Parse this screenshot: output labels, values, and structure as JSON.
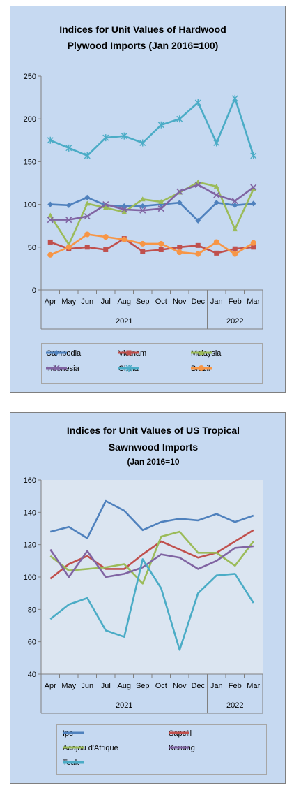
{
  "chart_data": [
    {
      "type": "line",
      "title": "Indices for Unit Values of Hardwood",
      "subtitle": "Plywood Imports (Jan 2016=100)",
      "categories": [
        "Apr",
        "May",
        "Jun",
        "Jul",
        "Aug",
        "Sep",
        "Oct",
        "Nov",
        "Dec",
        "Jan",
        "Feb",
        "Mar"
      ],
      "year_groups": [
        {
          "label": "2021",
          "count": 9
        },
        {
          "label": "2022",
          "count": 3
        }
      ],
      "ylim": [
        0,
        250
      ],
      "yticks": [
        0,
        50,
        100,
        150,
        200,
        250
      ],
      "grid": false,
      "legend_position": "bottom",
      "series": [
        {
          "name": "Cambodia",
          "color": "#4f81bd",
          "marker": "diamond",
          "values": [
            100,
            99,
            108,
            99,
            98,
            98,
            100,
            102,
            81,
            102,
            99,
            101
          ]
        },
        {
          "name": "Vietnam",
          "color": "#c0504d",
          "marker": "square",
          "values": [
            56,
            48,
            50,
            47,
            60,
            45,
            47,
            50,
            52,
            43,
            48,
            50
          ]
        },
        {
          "name": "Malaysia",
          "color": "#9bbb59",
          "marker": "triangle",
          "values": [
            87,
            53,
            101,
            96,
            91,
            106,
            103,
            114,
            126,
            121,
            71,
            118
          ]
        },
        {
          "name": "Indonesia",
          "color": "#8064a2",
          "marker": "x",
          "values": [
            82,
            82,
            86,
            100,
            94,
            93,
            95,
            115,
            123,
            111,
            104,
            120
          ]
        },
        {
          "name": "China",
          "color": "#4bacc6",
          "marker": "star",
          "values": [
            175,
            166,
            157,
            178,
            180,
            172,
            193,
            200,
            219,
            172,
            224,
            157
          ]
        },
        {
          "name": "Brazil",
          "color": "#f79646",
          "marker": "circle",
          "values": [
            41,
            50,
            65,
            62,
            59,
            54,
            54,
            44,
            42,
            56,
            42,
            55
          ]
        }
      ]
    },
    {
      "type": "line",
      "title": "Indices for Unit Values of US Tropical",
      "subtitle": "Sawnwood Imports",
      "subtitle2": "(Jan 2016=10",
      "categories": [
        "Apr",
        "May",
        "Jun",
        "Jul",
        "Aug",
        "Sep",
        "Oct",
        "Nov",
        "Dec",
        "Jan",
        "Feb",
        "Mar"
      ],
      "year_groups": [
        {
          "label": "2021",
          "count": 9
        },
        {
          "label": "2022",
          "count": 3
        }
      ],
      "ylim": [
        40,
        160
      ],
      "yticks": [
        40,
        60,
        80,
        100,
        120,
        140,
        160
      ],
      "grid": false,
      "legend_position": "bottom",
      "series": [
        {
          "name": "Ipe",
          "color": "#4f81bd",
          "values": [
            128,
            131,
            124,
            147,
            141,
            129,
            134,
            136,
            135,
            139,
            134,
            138
          ]
        },
        {
          "name": "Sapelli",
          "color": "#c0504d",
          "values": [
            99,
            108,
            113,
            105,
            105,
            114,
            122,
            117,
            112,
            115,
            122,
            129
          ]
        },
        {
          "name": "Acajou d'Afrique",
          "color": "#9bbb59",
          "values": [
            113,
            104,
            105,
            106,
            108,
            96,
            125,
            128,
            115,
            115,
            107,
            122
          ]
        },
        {
          "name": "Keruing",
          "color": "#8064a2",
          "values": [
            117,
            100,
            116,
            100,
            102,
            106,
            114,
            112,
            105,
            110,
            118,
            119
          ]
        },
        {
          "name": "Teak",
          "color": "#4bacc6",
          "values": [
            74,
            83,
            87,
            67,
            63,
            111,
            93,
            55,
            90,
            101,
            102,
            84
          ]
        }
      ]
    }
  ]
}
